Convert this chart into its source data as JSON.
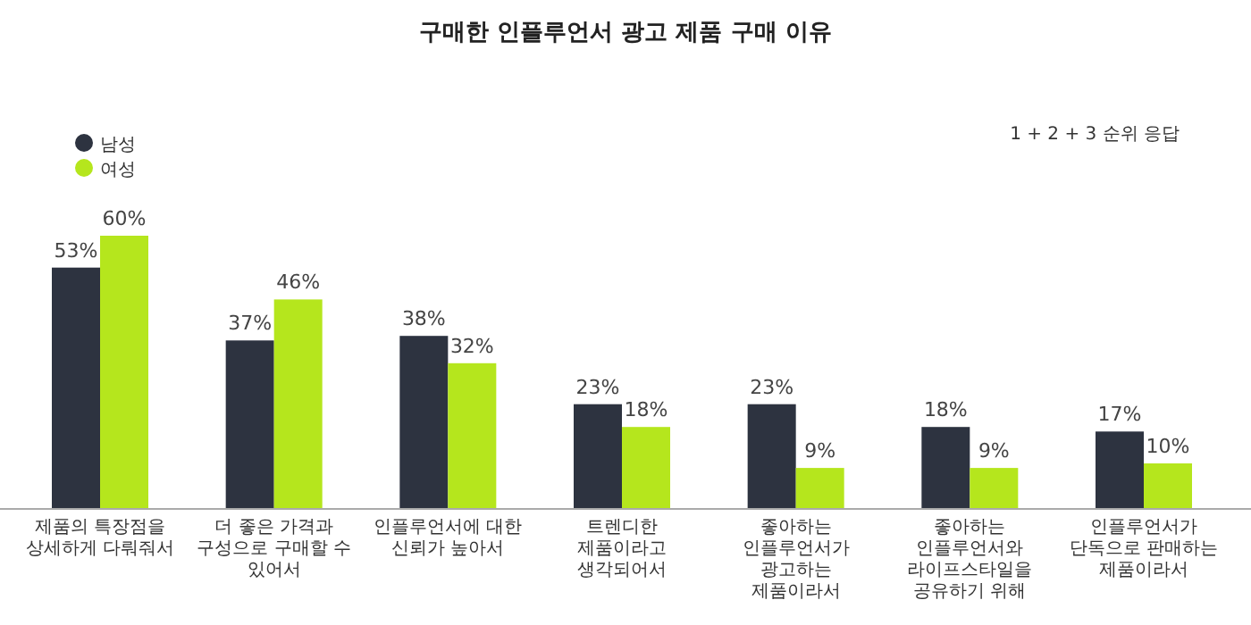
{
  "chart_data": {
    "type": "bar",
    "title": "구매한 인플루언서 광고 제품 구매 이유",
    "annotations": [
      "1 + 2 + 3 순위 응답"
    ],
    "categories": [
      "제품의 특장점을 상세하게 다뤄줘서",
      "더 좋은 가격과 구성으로 구매할 수 있어서",
      "인플루언서에 대한 신뢰가 높아서",
      "트렌디한 제품이라고 생각되어서",
      "좋아하는 인플루언서가 광고하는 제품이라서",
      "좋아하는 인플루언서와 라이프스타일을 공유하기 위해",
      "인플루언서가 단독으로 판매하는 제품이라서"
    ],
    "series": [
      {
        "name": "남성",
        "color": "#2d3340",
        "values": [
          53,
          37,
          38,
          23,
          23,
          18,
          17
        ],
        "value_labels": [
          "53%",
          "37%",
          "38%",
          "23%",
          "23%",
          "18%",
          "17%"
        ]
      },
      {
        "name": "여성",
        "color": "#b5e61d",
        "values": [
          60,
          46,
          32,
          18,
          9,
          9,
          10
        ],
        "value_labels": [
          "60%",
          "46%",
          "32%",
          "18%",
          "9%",
          "9%",
          "10%"
        ]
      }
    ],
    "legend": "top left"
  }
}
